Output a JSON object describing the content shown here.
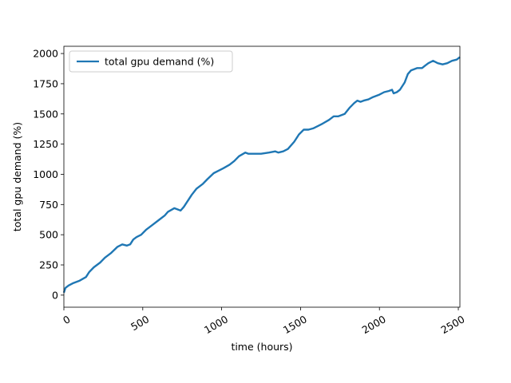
{
  "chart_data": {
    "type": "line",
    "title": "",
    "xlabel": "time (hours)",
    "ylabel": "total gpu demand (%)",
    "xlim": [
      0,
      2510
    ],
    "ylim": [
      -100,
      2060
    ],
    "xticks": [
      0,
      500,
      1000,
      1500,
      2000,
      2500
    ],
    "yticks": [
      0,
      250,
      500,
      750,
      1000,
      1250,
      1500,
      1750,
      2000
    ],
    "grid": false,
    "legend": "upper-left",
    "series": [
      {
        "name": "total gpu demand (%)",
        "color": "#1f77b4",
        "x": [
          0,
          10,
          30,
          60,
          100,
          140,
          160,
          190,
          230,
          260,
          300,
          340,
          370,
          400,
          420,
          440,
          460,
          490,
          520,
          560,
          600,
          640,
          660,
          700,
          740,
          760,
          790,
          810,
          840,
          880,
          910,
          950,
          980,
          1010,
          1050,
          1080,
          1110,
          1150,
          1170,
          1200,
          1250,
          1300,
          1340,
          1360,
          1390,
          1420,
          1460,
          1490,
          1520,
          1550,
          1580,
          1610,
          1640,
          1680,
          1710,
          1740,
          1780,
          1810,
          1840,
          1860,
          1880,
          1900,
          1930,
          1960,
          2000,
          2030,
          2060,
          2080,
          2090,
          2110,
          2130,
          2160,
          2180,
          2200,
          2240,
          2270,
          2290,
          2310,
          2340,
          2370,
          2400,
          2430,
          2460,
          2490,
          2510
        ],
        "values": [
          20,
          60,
          80,
          100,
          120,
          150,
          190,
          230,
          270,
          310,
          350,
          400,
          420,
          410,
          420,
          460,
          480,
          500,
          540,
          580,
          620,
          660,
          690,
          720,
          700,
          730,
          790,
          830,
          880,
          920,
          960,
          1010,
          1030,
          1050,
          1080,
          1110,
          1150,
          1180,
          1170,
          1170,
          1170,
          1180,
          1190,
          1180,
          1190,
          1210,
          1270,
          1330,
          1370,
          1370,
          1380,
          1400,
          1420,
          1450,
          1480,
          1480,
          1500,
          1550,
          1590,
          1610,
          1600,
          1610,
          1620,
          1640,
          1660,
          1680,
          1690,
          1700,
          1670,
          1680,
          1700,
          1760,
          1830,
          1860,
          1880,
          1880,
          1900,
          1920,
          1940,
          1920,
          1910,
          1920,
          1940,
          1950,
          1970
        ]
      }
    ]
  }
}
